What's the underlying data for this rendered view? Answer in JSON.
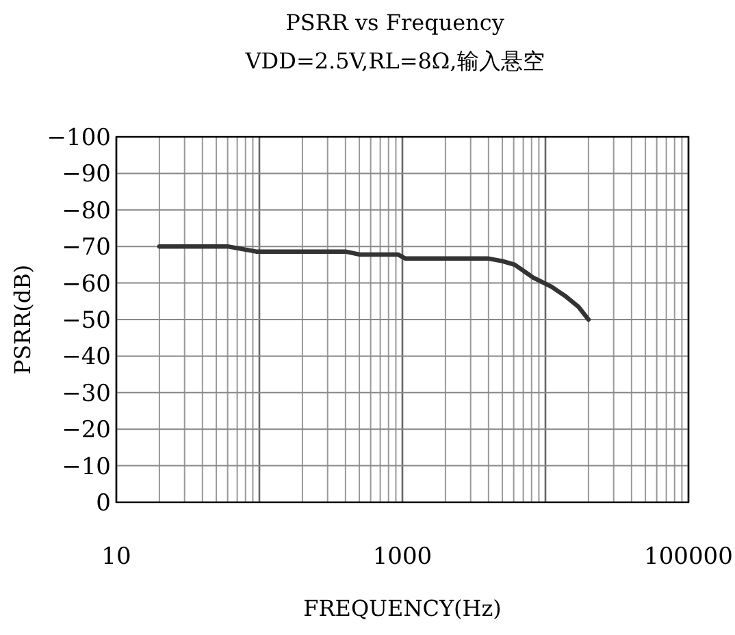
{
  "chart_data": {
    "type": "line",
    "title": "PSRR vs Frequency",
    "subtitle": "VDD=2.5V,RL=8Ω,输入悬空",
    "xlabel": "FREQUENCY(Hz)",
    "ylabel": "PSRR(dB)",
    "log": "x",
    "grid": true,
    "xlim": [
      10,
      100000
    ],
    "xticks": [
      10,
      {
        "value": 100,
        "label": null
      },
      1000,
      {
        "value": 10000,
        "label": null
      },
      100000
    ],
    "ylim": [
      0,
      -100
    ],
    "yticks": [
      0,
      -10,
      -20,
      -30,
      -40,
      -50,
      -60,
      -70,
      -80,
      -90,
      -100
    ],
    "x": [
      20,
      60,
      95,
      400,
      500,
      930,
      1050,
      4000,
      5000,
      6100,
      8200,
      11000,
      13700,
      17000,
      20000
    ],
    "series": [
      {
        "color": "#333333",
        "values": [
          -70,
          -70,
          -68.6,
          -68.6,
          -67.8,
          -67.8,
          -66.7,
          -66.7,
          -66,
          -65,
          -61.5,
          -59,
          -56.5,
          -53.5,
          -50
        ]
      }
    ]
  }
}
